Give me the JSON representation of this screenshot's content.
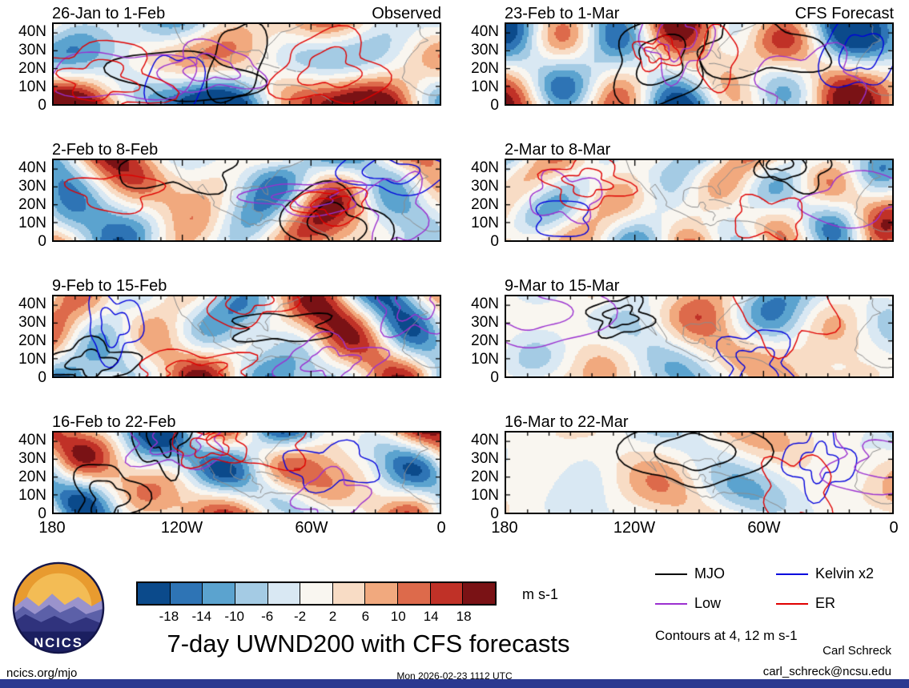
{
  "colors": {
    "bottom_bar": "#2b3990",
    "coastline": "#8c8c8c",
    "panel_border": "#000000"
  },
  "chart_data": {
    "type": "heatmap",
    "title": "7-day UWND200 with CFS forecasts",
    "units": "m s-1",
    "columns": [
      {
        "label": "Observed",
        "panels": [
          {
            "title": "26-Jan to 1-Feb",
            "intensity": 1.0
          },
          {
            "title": "2-Feb to 8-Feb",
            "intensity": 1.0
          },
          {
            "title": "9-Feb to 15-Feb",
            "intensity": 1.0
          },
          {
            "title": "16-Feb to 22-Feb",
            "intensity": 1.0
          }
        ]
      },
      {
        "label": "CFS Forecast",
        "panels": [
          {
            "title": "23-Feb to 1-Mar",
            "intensity": 0.95
          },
          {
            "title": "2-Mar to 8-Mar",
            "intensity": 0.8
          },
          {
            "title": "9-Mar to 15-Mar",
            "intensity": 0.6
          },
          {
            "title": "16-Mar to 22-Mar",
            "intensity": 0.45
          }
        ]
      }
    ],
    "x_axis": {
      "ticks": [
        "180",
        "120W",
        "60W",
        "0"
      ]
    },
    "y_axis": {
      "ticks": [
        "40N",
        "30N",
        "20N",
        "10N",
        "0"
      ]
    },
    "colorbar": {
      "boundaries": [
        -18,
        -14,
        -10,
        -6,
        -2,
        2,
        6,
        10,
        14,
        18
      ],
      "colors": [
        "#0b4a8b",
        "#2e74b5",
        "#5ba3cf",
        "#a4cbe4",
        "#d9e8f3",
        "#f9f6f0",
        "#f8dcc5",
        "#f1a97e",
        "#dd6a4b",
        "#c03127",
        "#7a1215"
      ],
      "label": "m s-1"
    },
    "legend": [
      {
        "label": "MJO",
        "color": "#000000"
      },
      {
        "label": "Kelvin x2",
        "color": "#0000dd"
      },
      {
        "label": "Low",
        "color": "#9b30d0"
      },
      {
        "label": "ER",
        "color": "#e00000"
      }
    ],
    "contour_note": "Contours at 4, 12 m s-1"
  },
  "footer": {
    "site": "ncics.org/mjo",
    "timestamp": "Mon 2026-02-23 1112 UTC",
    "credit_name": "Carl Schreck",
    "credit_email": "carl_schreck@ncsu.edu",
    "logo_text": "NCICS"
  }
}
